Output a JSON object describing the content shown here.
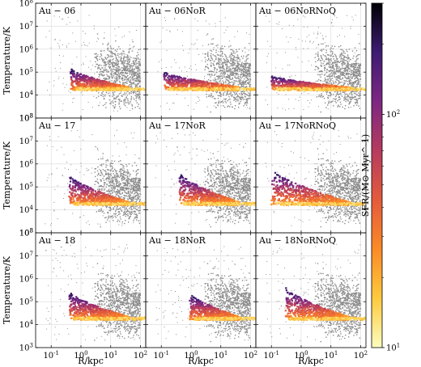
{
  "chart_data": {
    "type": "scatter",
    "layout": "3x3 grid of panels with shared axes and one shared colorbar",
    "xlabel": "R/kpc",
    "ylabel": "Temperature/K",
    "x_scale": "log",
    "y_scale": "log",
    "xlim": [
      0.03,
      150
    ],
    "ylim": [
      1000,
      100000000
    ],
    "x_ticks": [
      0.1,
      1,
      10,
      100
    ],
    "x_tick_labels": [
      "10^-1",
      "10^0",
      "10^1",
      "10^2"
    ],
    "y_ticks": [
      1000,
      10000,
      100000,
      1000000,
      10000000,
      100000000
    ],
    "y_tick_labels": [
      "10^3",
      "10^4",
      "10^5",
      "10^6",
      "10^7",
      "10^8"
    ],
    "grid": true,
    "background_points": {
      "description": "all gas cells",
      "color": "#8c8c8c"
    },
    "colorbar": {
      "label": "SFR/(M⊙ Myr^-1)",
      "scale": "log",
      "range": [
        10,
        300
      ],
      "ticks": [
        10,
        100
      ],
      "tick_labels": [
        "10^1",
        "10^2"
      ],
      "colormap": [
        "#fcfdbf",
        "#feca3f",
        "#fb8a27",
        "#e45b3c",
        "#b63b5e",
        "#7d2782",
        "#3e1c72",
        "#000004"
      ]
    },
    "panels": [
      {
        "title": "Au − 06",
        "tail_start_R": 0.45,
        "tail_peak_T": 150000
      },
      {
        "title": "Au − 06NoR",
        "tail_start_R": 0.12,
        "tail_peak_T": 110000
      },
      {
        "title": "Au − 06NoRNoQ",
        "tail_start_R": 0.1,
        "tail_peak_T": 70000
      },
      {
        "title": "Au − 17",
        "tail_start_R": 0.4,
        "tail_peak_T": 350000
      },
      {
        "title": "Au − 17NoR",
        "tail_start_R": 0.4,
        "tail_peak_T": 450000
      },
      {
        "title": "Au − 17NoRNoQ",
        "tail_start_R": 0.1,
        "tail_peak_T": 650000
      },
      {
        "title": "Au − 18",
        "tail_start_R": 0.4,
        "tail_peak_T": 300000
      },
      {
        "title": "Au − 18NoR",
        "tail_start_R": 0.9,
        "tail_peak_T": 250000
      },
      {
        "title": "Au − 18NoRNoQ",
        "tail_start_R": 0.3,
        "tail_peak_T": 450000
      }
    ]
  }
}
